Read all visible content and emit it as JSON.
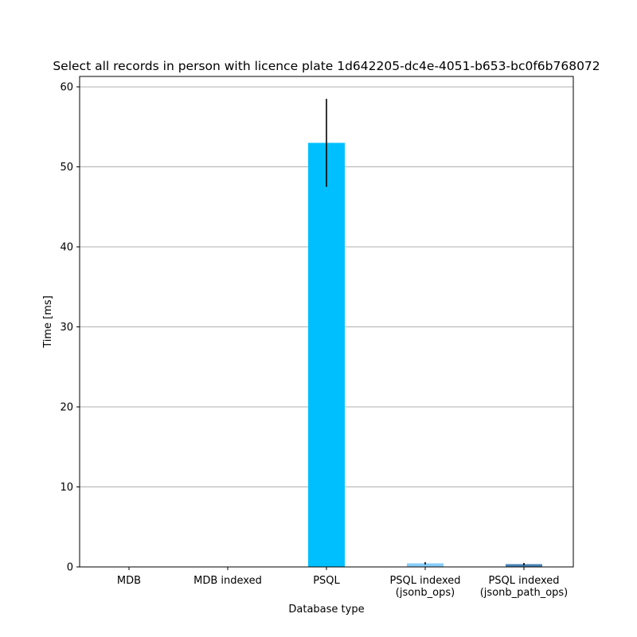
{
  "chart_data": {
    "type": "bar",
    "title": "Select all records in person with licence plate 1d642205-dc4e-4051-b653-bc0f6b768072",
    "xlabel": "Database type",
    "ylabel": "Time [ms]",
    "categories": [
      [
        "MDB"
      ],
      [
        "MDB indexed"
      ],
      [
        "PSQL"
      ],
      [
        "PSQL indexed",
        "(jsonb_ops)"
      ],
      [
        "PSQL indexed",
        "(jsonb_path_ops)"
      ]
    ],
    "values": [
      0.0,
      0.0,
      53.0,
      0.45,
      0.35
    ],
    "errors": [
      0.0,
      0.0,
      5.5,
      0.15,
      0.15
    ],
    "bar_colors": [
      "#00bfff",
      "#00bfff",
      "#00bfff",
      "#87cefa",
      "#4682b4"
    ],
    "error_color": "#000000",
    "ylim": [
      0,
      61.3
    ],
    "yticks": [
      0,
      10,
      20,
      30,
      40,
      50,
      60
    ],
    "grid": {
      "y": true,
      "x": false,
      "color": "#b0b0b0"
    },
    "legend": "none"
  }
}
